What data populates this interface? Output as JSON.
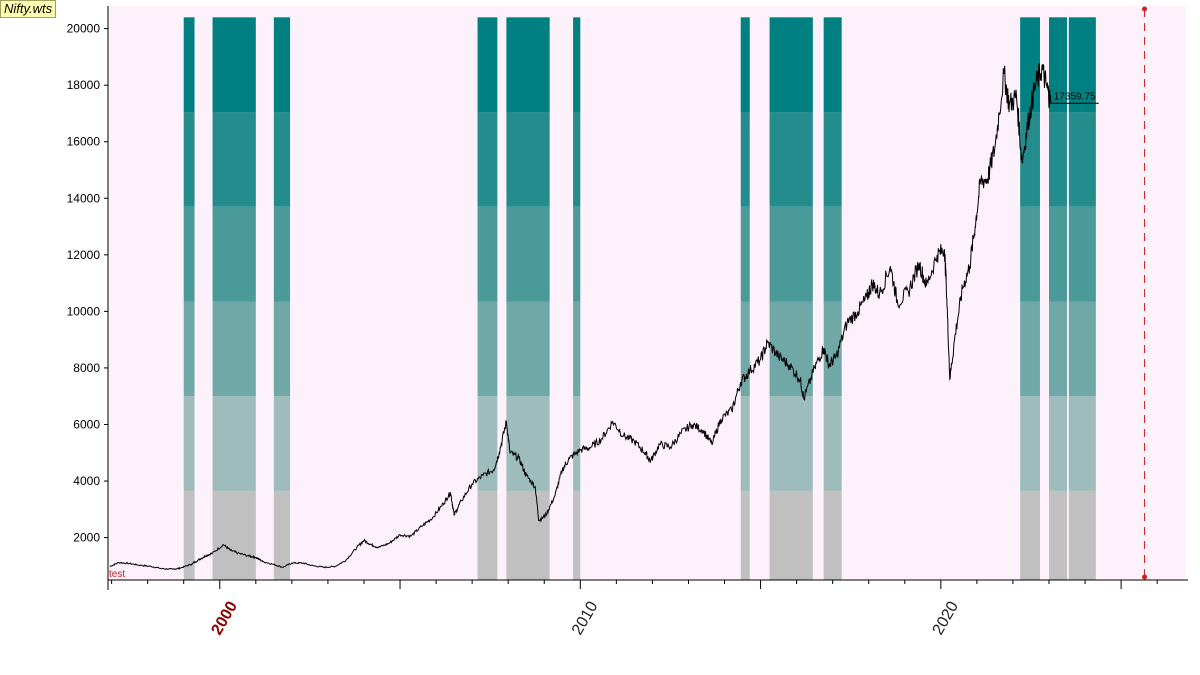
{
  "window": {
    "file_label": "Nifty.wts"
  },
  "chart_data": {
    "type": "line",
    "title": "",
    "xlabel": "",
    "ylabel": "",
    "xlim": [
      1996.9,
      2026.8
    ],
    "ylim": [
      500,
      20800
    ],
    "yticks": [
      2000,
      4000,
      6000,
      8000,
      10000,
      12000,
      14000,
      16000,
      18000,
      20000
    ],
    "yticks_labels": [
      "2000",
      "4000",
      "6000",
      "8000",
      "10000",
      "12000",
      "14000",
      "16000",
      "18000",
      "20000"
    ],
    "xticks": [
      {
        "value": 2000,
        "label": "2000",
        "color": "#8b0000"
      },
      {
        "value": 2010,
        "label": "2010",
        "color": "#222222"
      },
      {
        "value": 2020,
        "label": "2020",
        "color": "#222222"
      }
    ],
    "grid": false,
    "corner_label": "test",
    "last_value_label": "17359.75",
    "last_value": 17359.75,
    "colors": {
      "plot_bg": "#fdf2fb",
      "line": "#000000",
      "bands": [
        "#c0c0c0",
        "#9fbcbc",
        "#70a8a8",
        "#4a9a9a",
        "#248c8c",
        "#008080"
      ],
      "marker": "#cc2222"
    },
    "band_levels": [
      500,
      3650,
      7000,
      10350,
      13700,
      17050,
      20400
    ],
    "shaded_periods": [
      {
        "start": 1999.0,
        "end": 1999.3
      },
      {
        "start": 1999.8,
        "end": 2001.0
      },
      {
        "start": 2001.5,
        "end": 2001.95
      },
      {
        "start": 2007.15,
        "end": 2007.7
      },
      {
        "start": 2007.95,
        "end": 2009.15
      },
      {
        "start": 2009.8,
        "end": 2010.0
      },
      {
        "start": 2014.45,
        "end": 2014.7
      },
      {
        "start": 2015.25,
        "end": 2016.45
      },
      {
        "start": 2016.75,
        "end": 2017.25
      },
      {
        "start": 2022.2,
        "end": 2022.75
      },
      {
        "start": 2023.0,
        "end": 2023.5
      },
      {
        "start": 2023.55,
        "end": 2024.3
      }
    ],
    "vertical_markers": [
      {
        "x": 2025.65
      }
    ],
    "series": [
      {
        "values": [
          [
            1996.95,
            980
          ],
          [
            1997.2,
            1120
          ],
          [
            1997.5,
            1080
          ],
          [
            1997.8,
            1020
          ],
          [
            1998.1,
            980
          ],
          [
            1998.4,
            900
          ],
          [
            1998.7,
            880
          ],
          [
            1998.9,
            920
          ],
          [
            1999.2,
            1050
          ],
          [
            1999.4,
            1200
          ],
          [
            1999.6,
            1350
          ],
          [
            1999.8,
            1450
          ],
          [
            2000.1,
            1750
          ],
          [
            2000.3,
            1550
          ],
          [
            2000.5,
            1450
          ],
          [
            2000.8,
            1350
          ],
          [
            2001.0,
            1300
          ],
          [
            2001.2,
            1150
          ],
          [
            2001.5,
            1050
          ],
          [
            2001.75,
            950
          ],
          [
            2002.0,
            1100
          ],
          [
            2002.3,
            1100
          ],
          [
            2002.6,
            1000
          ],
          [
            2002.9,
            950
          ],
          [
            2003.2,
            980
          ],
          [
            2003.5,
            1200
          ],
          [
            2003.8,
            1650
          ],
          [
            2004.0,
            1900
          ],
          [
            2004.2,
            1750
          ],
          [
            2004.4,
            1650
          ],
          [
            2004.7,
            1800
          ],
          [
            2005.0,
            2100
          ],
          [
            2005.3,
            2050
          ],
          [
            2005.6,
            2400
          ],
          [
            2005.9,
            2700
          ],
          [
            2006.2,
            3200
          ],
          [
            2006.4,
            3600
          ],
          [
            2006.5,
            2800
          ],
          [
            2006.7,
            3300
          ],
          [
            2007.0,
            3900
          ],
          [
            2007.3,
            4200
          ],
          [
            2007.6,
            4400
          ],
          [
            2007.75,
            5000
          ],
          [
            2007.95,
            6100
          ],
          [
            2008.05,
            5000
          ],
          [
            2008.3,
            4800
          ],
          [
            2008.5,
            4200
          ],
          [
            2008.75,
            3800
          ],
          [
            2008.85,
            2600
          ],
          [
            2009.05,
            2800
          ],
          [
            2009.3,
            3500
          ],
          [
            2009.5,
            4400
          ],
          [
            2009.7,
            4800
          ],
          [
            2010.0,
            5100
          ],
          [
            2010.3,
            5200
          ],
          [
            2010.6,
            5500
          ],
          [
            2010.9,
            6100
          ],
          [
            2011.2,
            5600
          ],
          [
            2011.5,
            5400
          ],
          [
            2011.8,
            5000
          ],
          [
            2011.95,
            4700
          ],
          [
            2012.2,
            5300
          ],
          [
            2012.5,
            5200
          ],
          [
            2012.8,
            5700
          ],
          [
            2013.1,
            6000
          ],
          [
            2013.4,
            5800
          ],
          [
            2013.65,
            5300
          ],
          [
            2013.9,
            6200
          ],
          [
            2014.2,
            6500
          ],
          [
            2014.45,
            7500
          ],
          [
            2014.7,
            7900
          ],
          [
            2015.0,
            8300
          ],
          [
            2015.2,
            8900
          ],
          [
            2015.5,
            8400
          ],
          [
            2015.8,
            8100
          ],
          [
            2016.1,
            7600
          ],
          [
            2016.2,
            6900
          ],
          [
            2016.5,
            8000
          ],
          [
            2016.75,
            8700
          ],
          [
            2016.9,
            8100
          ],
          [
            2017.1,
            8400
          ],
          [
            2017.4,
            9600
          ],
          [
            2017.7,
            10000
          ],
          [
            2017.95,
            10500
          ],
          [
            2018.1,
            11000
          ],
          [
            2018.3,
            10600
          ],
          [
            2018.6,
            11600
          ],
          [
            2018.8,
            10300
          ],
          [
            2019.1,
            10700
          ],
          [
            2019.4,
            11700
          ],
          [
            2019.6,
            10900
          ],
          [
            2019.9,
            12000
          ],
          [
            2020.1,
            12200
          ],
          [
            2020.15,
            11000
          ],
          [
            2020.25,
            7600
          ],
          [
            2020.4,
            9200
          ],
          [
            2020.6,
            10800
          ],
          [
            2020.8,
            11600
          ],
          [
            2020.95,
            13000
          ],
          [
            2021.1,
            14600
          ],
          [
            2021.3,
            14700
          ],
          [
            2021.5,
            15800
          ],
          [
            2021.75,
            18400
          ],
          [
            2021.9,
            17300
          ],
          [
            2022.1,
            17600
          ],
          [
            2022.25,
            15300
          ],
          [
            2022.45,
            16900
          ],
          [
            2022.6,
            17900
          ],
          [
            2022.8,
            18600
          ],
          [
            2022.95,
            17900
          ],
          [
            2023.05,
            17359.75
          ]
        ]
      }
    ]
  }
}
